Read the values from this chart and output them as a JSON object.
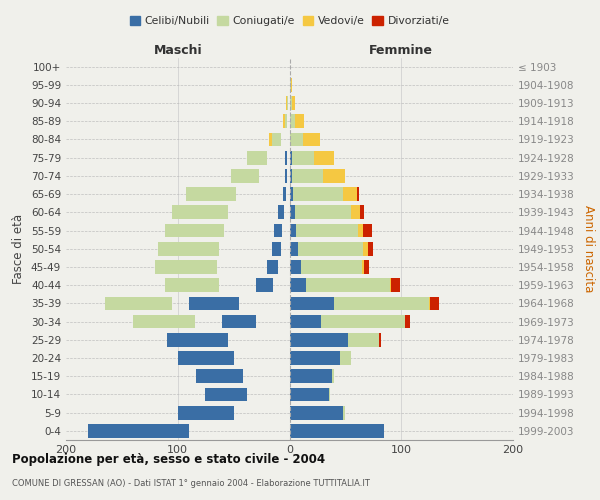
{
  "age_groups": [
    "0-4",
    "5-9",
    "10-14",
    "15-19",
    "20-24",
    "25-29",
    "30-34",
    "35-39",
    "40-44",
    "45-49",
    "50-54",
    "55-59",
    "60-64",
    "65-69",
    "70-74",
    "75-79",
    "80-84",
    "85-89",
    "90-94",
    "95-99",
    "100+"
  ],
  "birth_years": [
    "1999-2003",
    "1994-1998",
    "1989-1993",
    "1984-1988",
    "1979-1983",
    "1974-1978",
    "1969-1973",
    "1964-1968",
    "1959-1963",
    "1954-1958",
    "1949-1953",
    "1944-1948",
    "1939-1943",
    "1934-1938",
    "1929-1933",
    "1924-1928",
    "1919-1923",
    "1914-1918",
    "1909-1913",
    "1904-1908",
    "≤ 1903"
  ],
  "colors": {
    "celibi": "#3a6ea5",
    "coniugati": "#c5d9a0",
    "vedovi": "#f5c842",
    "divorziati": "#cc2200"
  },
  "maschi_celibi": [
    90,
    50,
    38,
    42,
    50,
    55,
    30,
    45,
    15,
    10,
    8,
    7,
    5,
    3,
    2,
    2,
    0,
    0,
    0,
    0,
    0
  ],
  "maschi_coniugati": [
    0,
    0,
    1,
    2,
    8,
    20,
    55,
    60,
    48,
    55,
    55,
    52,
    50,
    45,
    25,
    18,
    8,
    2,
    1,
    0,
    0
  ],
  "maschi_vedovi": [
    0,
    0,
    0,
    0,
    0,
    0,
    0,
    1,
    1,
    2,
    2,
    3,
    4,
    5,
    8,
    5,
    5,
    2,
    1,
    0,
    0
  ],
  "maschi_divorziati": [
    0,
    0,
    0,
    0,
    0,
    0,
    2,
    5,
    8,
    4,
    5,
    8,
    2,
    0,
    0,
    0,
    0,
    0,
    0,
    0,
    0
  ],
  "femmine_celibi": [
    85,
    48,
    35,
    38,
    45,
    52,
    28,
    40,
    15,
    10,
    8,
    6,
    5,
    3,
    2,
    2,
    0,
    0,
    0,
    0,
    0
  ],
  "femmine_coniugati": [
    0,
    2,
    1,
    2,
    10,
    28,
    75,
    85,
    75,
    55,
    58,
    55,
    50,
    45,
    28,
    20,
    12,
    5,
    2,
    1,
    0
  ],
  "femmine_vedovi": [
    0,
    0,
    0,
    0,
    0,
    0,
    0,
    1,
    1,
    2,
    4,
    5,
    8,
    12,
    20,
    18,
    15,
    8,
    3,
    1,
    0
  ],
  "femmine_divorziati": [
    0,
    0,
    0,
    0,
    0,
    2,
    5,
    8,
    8,
    4,
    5,
    8,
    4,
    2,
    0,
    0,
    0,
    0,
    0,
    0,
    0
  ],
  "xlim": [
    -200,
    200
  ],
  "xticks": [
    -200,
    -100,
    0,
    100,
    200
  ],
  "xticklabels": [
    "200",
    "100",
    "0",
    "100",
    "200"
  ],
  "title": "Popolazione per età, sesso e stato civile - 2004",
  "subtitle": "COMUNE DI GRESSAN (AO) - Dati ISTAT 1° gennaio 2004 - Elaborazione TUTTITALIA.IT",
  "ylabel_left": "Fasce di età",
  "ylabel_right": "Anni di nascita",
  "maschi_label": "Maschi",
  "femmine_label": "Femmine",
  "legend_labels": [
    "Celibi/Nubili",
    "Coniugati/e",
    "Vedovi/e",
    "Divorziati/e"
  ],
  "background_color": "#f0f0eb",
  "bar_height": 0.75
}
